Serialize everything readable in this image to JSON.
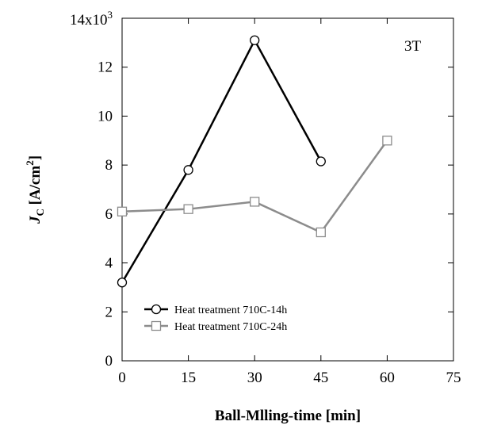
{
  "chart_data": {
    "type": "line",
    "title": "",
    "xlabel": "Ball-Mlling-time [min]",
    "ylabel": {
      "symbol": "J",
      "subscript": "C",
      "unit_prefix": " [A/cm",
      "unit_power": "2",
      "unit_suffix": "]"
    },
    "y_multiplier_label": {
      "base": "x10",
      "exponent": "3"
    },
    "annotation": "3T",
    "xlim": [
      0,
      75
    ],
    "ylim": [
      0,
      14
    ],
    "x_ticks": [
      0,
      15,
      30,
      45,
      60,
      75
    ],
    "y_ticks": [
      0,
      2,
      4,
      6,
      8,
      10,
      12,
      14
    ],
    "grid": false,
    "legend_position": "lower-left",
    "series": [
      {
        "name": "Heat treatment 710C-14h",
        "marker": "circle",
        "color": "#000000",
        "x": [
          0,
          15,
          30,
          45
        ],
        "y": [
          3.2,
          7.8,
          13.1,
          8.15
        ]
      },
      {
        "name": "Heat treatment 710C-24h",
        "marker": "square",
        "color": "#8c8c8c",
        "x": [
          0,
          15,
          30,
          45,
          60
        ],
        "y": [
          6.1,
          6.2,
          6.5,
          5.25,
          9.0
        ]
      }
    ]
  }
}
